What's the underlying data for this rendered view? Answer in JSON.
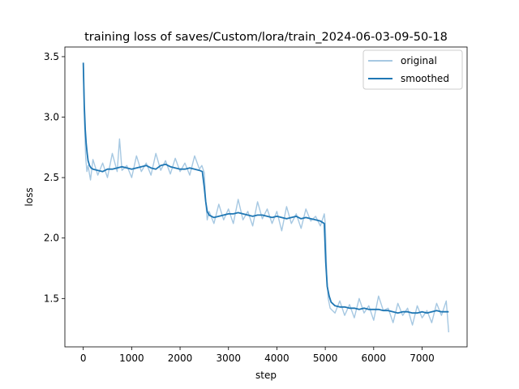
{
  "chart_data": {
    "type": "line",
    "title": "training loss of saves/Custom/lora/train_2024-06-03-09-50-18",
    "xlabel": "step",
    "ylabel": "loss",
    "xlim": [
      -380,
      7930
    ],
    "ylim": [
      1.1,
      3.58
    ],
    "xticks": [
      0,
      1000,
      2000,
      3000,
      4000,
      5000,
      6000,
      7000
    ],
    "yticks": [
      1.5,
      2.0,
      2.5,
      3.0,
      3.5
    ],
    "xtick_labels": [
      "0",
      "1000",
      "2000",
      "3000",
      "4000",
      "5000",
      "6000",
      "7000"
    ],
    "ytick_labels": [
      "1.5",
      "2.0",
      "2.5",
      "3.0",
      "3.5"
    ],
    "legend": {
      "position": "top-right"
    },
    "series": [
      {
        "name": "original",
        "color": "#a6c8e2",
        "x": [
          0,
          25,
          50,
          75,
          100,
          150,
          200,
          300,
          400,
          500,
          600,
          700,
          750,
          800,
          900,
          1000,
          1100,
          1200,
          1300,
          1400,
          1500,
          1600,
          1700,
          1800,
          1900,
          2000,
          2100,
          2200,
          2300,
          2400,
          2450,
          2500,
          2530,
          2560,
          2600,
          2700,
          2800,
          2900,
          3000,
          3100,
          3200,
          3300,
          3400,
          3500,
          3600,
          3700,
          3800,
          3900,
          4000,
          4100,
          4200,
          4300,
          4400,
          4500,
          4600,
          4700,
          4800,
          4900,
          4980,
          5000,
          5030,
          5060,
          5100,
          5200,
          5300,
          5400,
          5500,
          5600,
          5700,
          5800,
          5900,
          6000,
          6100,
          6200,
          6300,
          6400,
          6500,
          6600,
          6700,
          6800,
          6900,
          7000,
          7100,
          7200,
          7300,
          7400,
          7500,
          7550
        ],
        "y": [
          3.45,
          2.95,
          2.66,
          2.55,
          2.6,
          2.48,
          2.65,
          2.52,
          2.62,
          2.5,
          2.7,
          2.55,
          2.82,
          2.56,
          2.6,
          2.5,
          2.68,
          2.55,
          2.62,
          2.52,
          2.7,
          2.56,
          2.64,
          2.53,
          2.66,
          2.55,
          2.62,
          2.52,
          2.68,
          2.57,
          2.6,
          2.54,
          2.3,
          2.15,
          2.22,
          2.12,
          2.28,
          2.15,
          2.24,
          2.12,
          2.32,
          2.15,
          2.22,
          2.1,
          2.3,
          2.16,
          2.24,
          2.12,
          2.22,
          2.06,
          2.26,
          2.12,
          2.2,
          2.08,
          2.24,
          2.14,
          2.18,
          2.1,
          2.2,
          2.12,
          1.7,
          1.5,
          1.42,
          1.38,
          1.48,
          1.36,
          1.45,
          1.34,
          1.5,
          1.38,
          1.44,
          1.32,
          1.52,
          1.4,
          1.42,
          1.3,
          1.46,
          1.36,
          1.42,
          1.28,
          1.44,
          1.34,
          1.4,
          1.3,
          1.46,
          1.36,
          1.48,
          1.22
        ]
      },
      {
        "name": "smoothed",
        "color": "#1f77b4",
        "x": [
          0,
          20,
          40,
          60,
          80,
          100,
          130,
          160,
          200,
          300,
          400,
          500,
          600,
          700,
          800,
          900,
          1000,
          1100,
          1200,
          1300,
          1400,
          1500,
          1600,
          1700,
          1800,
          1900,
          2000,
          2100,
          2200,
          2300,
          2400,
          2460,
          2500,
          2530,
          2560,
          2600,
          2700,
          2800,
          2900,
          3000,
          3100,
          3200,
          3300,
          3400,
          3500,
          3600,
          3700,
          3800,
          3900,
          4000,
          4100,
          4200,
          4300,
          4400,
          4500,
          4600,
          4700,
          4800,
          4900,
          4980,
          5010,
          5040,
          5080,
          5120,
          5200,
          5300,
          5400,
          5500,
          5600,
          5700,
          5800,
          5900,
          6000,
          6100,
          6200,
          6300,
          6400,
          6500,
          6600,
          6700,
          6800,
          6900,
          7000,
          7100,
          7200,
          7300,
          7400,
          7500,
          7550
        ],
        "y": [
          3.45,
          3.1,
          2.9,
          2.78,
          2.7,
          2.64,
          2.6,
          2.58,
          2.57,
          2.56,
          2.55,
          2.57,
          2.57,
          2.58,
          2.59,
          2.58,
          2.57,
          2.58,
          2.59,
          2.6,
          2.58,
          2.57,
          2.6,
          2.61,
          2.59,
          2.58,
          2.57,
          2.57,
          2.58,
          2.57,
          2.56,
          2.55,
          2.42,
          2.3,
          2.22,
          2.19,
          2.17,
          2.18,
          2.19,
          2.2,
          2.2,
          2.21,
          2.2,
          2.19,
          2.18,
          2.19,
          2.19,
          2.18,
          2.17,
          2.18,
          2.17,
          2.16,
          2.17,
          2.18,
          2.16,
          2.17,
          2.16,
          2.15,
          2.14,
          2.12,
          1.8,
          1.6,
          1.52,
          1.47,
          1.44,
          1.43,
          1.43,
          1.42,
          1.42,
          1.41,
          1.42,
          1.41,
          1.41,
          1.41,
          1.4,
          1.4,
          1.39,
          1.38,
          1.39,
          1.39,
          1.38,
          1.38,
          1.39,
          1.38,
          1.39,
          1.4,
          1.39,
          1.39,
          1.39
        ]
      }
    ]
  }
}
